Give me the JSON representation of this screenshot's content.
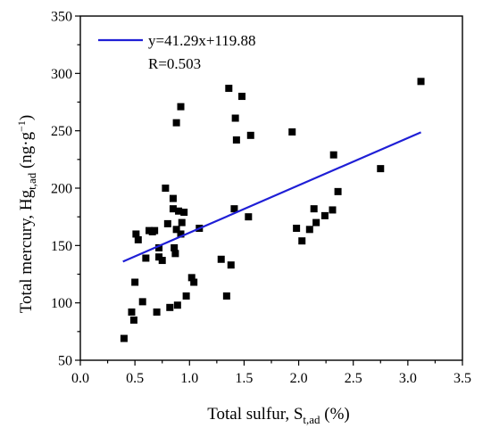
{
  "chart_data": {
    "type": "scatter",
    "xlabel": {
      "main": "Total sulfur, S",
      "sub": "t,ad",
      "tail": " (%)"
    },
    "ylabel": {
      "main": "Total mercury, Hg",
      "sub": "t,ad",
      "mid": " (ng·g",
      "sup": "−1",
      "tail": ")"
    },
    "xlim": [
      0.0,
      3.5
    ],
    "ylim": [
      50,
      350
    ],
    "x_ticks": [
      "0.0",
      "0.5",
      "1.0",
      "1.5",
      "2.0",
      "2.5",
      "3.0",
      "3.5"
    ],
    "y_ticks": [
      "50",
      "100",
      "150",
      "200",
      "250",
      "300",
      "350"
    ],
    "grid": false,
    "legend": {
      "placement": "top-left",
      "fit_label": "y=41.29x+119.88",
      "r_label": "R=0.503"
    },
    "fit": {
      "slope": 41.29,
      "intercept": 119.88,
      "x_range": [
        0.39,
        3.12
      ],
      "color": "#1f1fd6"
    },
    "marker_color": "#000000",
    "points": [
      [
        0.4,
        69
      ],
      [
        0.47,
        92
      ],
      [
        0.49,
        85
      ],
      [
        0.5,
        118
      ],
      [
        0.51,
        160
      ],
      [
        0.53,
        155
      ],
      [
        0.57,
        101
      ],
      [
        0.6,
        139
      ],
      [
        0.63,
        163
      ],
      [
        0.66,
        162
      ],
      [
        0.68,
        163
      ],
      [
        0.7,
        92
      ],
      [
        0.72,
        148
      ],
      [
        0.72,
        140
      ],
      [
        0.75,
        137
      ],
      [
        0.78,
        200
      ],
      [
        0.8,
        169
      ],
      [
        0.82,
        96
      ],
      [
        0.85,
        191
      ],
      [
        0.85,
        182
      ],
      [
        0.86,
        148
      ],
      [
        0.87,
        143
      ],
      [
        0.88,
        164
      ],
      [
        0.88,
        257
      ],
      [
        0.89,
        98
      ],
      [
        0.9,
        180
      ],
      [
        0.92,
        271
      ],
      [
        0.92,
        160
      ],
      [
        0.93,
        170
      ],
      [
        0.95,
        179
      ],
      [
        0.97,
        106
      ],
      [
        1.02,
        122
      ],
      [
        1.04,
        118
      ],
      [
        1.09,
        165
      ],
      [
        1.29,
        138
      ],
      [
        1.34,
        106
      ],
      [
        1.36,
        287
      ],
      [
        1.38,
        133
      ],
      [
        1.41,
        182
      ],
      [
        1.42,
        261
      ],
      [
        1.43,
        242
      ],
      [
        1.48,
        280
      ],
      [
        1.54,
        175
      ],
      [
        1.56,
        246
      ],
      [
        1.94,
        249
      ],
      [
        1.98,
        165
      ],
      [
        2.03,
        154
      ],
      [
        2.1,
        164
      ],
      [
        2.14,
        182
      ],
      [
        2.16,
        170
      ],
      [
        2.24,
        176
      ],
      [
        2.31,
        181
      ],
      [
        2.32,
        229
      ],
      [
        2.36,
        197
      ],
      [
        2.75,
        217
      ],
      [
        3.12,
        293
      ]
    ]
  }
}
